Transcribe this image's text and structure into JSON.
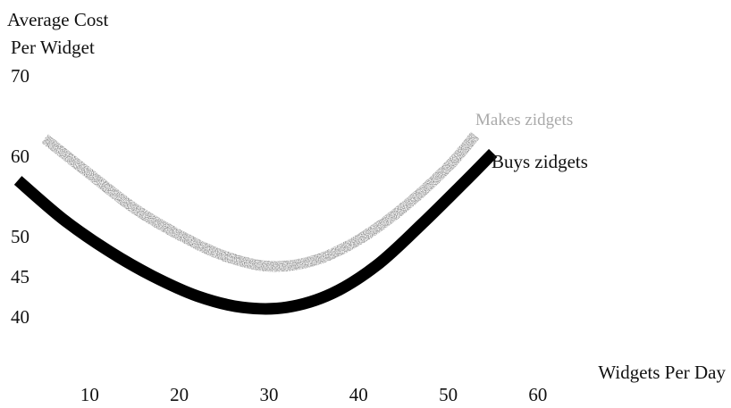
{
  "chart_data": {
    "type": "line",
    "title": "",
    "ylabel_lines": [
      "Average Cost",
      "Per Widget"
    ],
    "xlabel": "Widgets Per Day",
    "xlim": [
      0,
      63
    ],
    "ylim": [
      33,
      74
    ],
    "x_ticks": [
      "10",
      "20",
      "30",
      "40",
      "50",
      "60"
    ],
    "x_tick_values": [
      10,
      20,
      30,
      40,
      50,
      60
    ],
    "y_ticks": [
      "70",
      "60",
      "50",
      "45",
      "40"
    ],
    "y_tick_values": [
      70,
      60,
      50,
      45,
      40
    ],
    "grid": false,
    "legend": "none",
    "series": [
      {
        "name": "Makes zidgets",
        "color": "#7a7a7a",
        "style": "textured",
        "x": [
          5,
          10,
          15,
          20,
          25,
          30,
          35,
          40,
          45,
          50,
          53
        ],
        "y": [
          62.2,
          57.8,
          53.5,
          50.2,
          47.6,
          46.3,
          47.0,
          49.6,
          53.6,
          58.7,
          62.6
        ]
      },
      {
        "name": "Buys zidgets",
        "color": "#000000",
        "style": "solid",
        "x": [
          2,
          7,
          12,
          17,
          22,
          27,
          32,
          37,
          42,
          47,
          52,
          55
        ],
        "y": [
          57.0,
          52.2,
          48.3,
          45.1,
          42.6,
          41.2,
          41.2,
          42.9,
          46.4,
          51.5,
          57.0,
          60.4
        ]
      }
    ]
  }
}
